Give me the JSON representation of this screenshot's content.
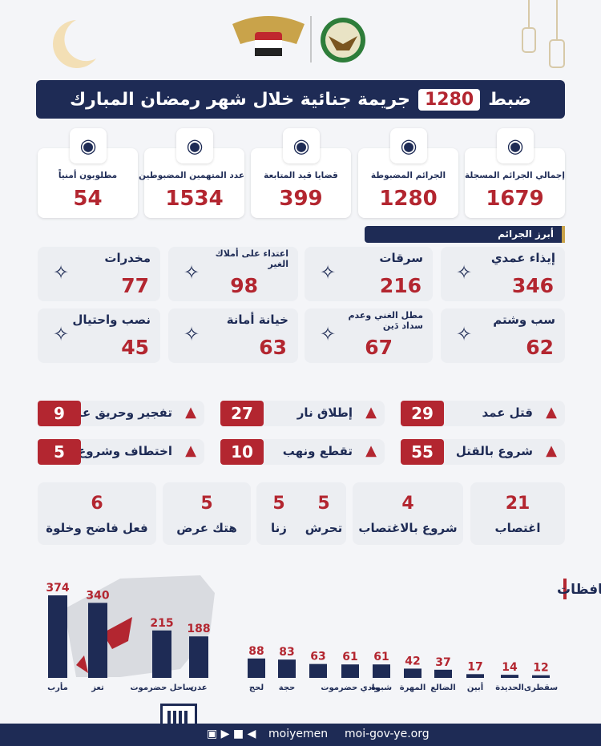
{
  "header": {
    "title_before": "ضبط",
    "title_number": "1280",
    "title_after": "جريمة جنائية خلال شهر رمضان المبارك"
  },
  "stats": [
    {
      "label": "إجمالي الجرائم المسجلة",
      "value": 1679
    },
    {
      "label": "الجرائم المضبوطة",
      "value": 1280
    },
    {
      "label": "قضايا قيد المتابعة",
      "value": 399
    },
    {
      "label": "عدد المتهمين المضبوطين",
      "value": 1534
    },
    {
      "label": "مطلوبون أمنياً",
      "value": 54
    }
  ],
  "section_title": "أبرز الجرائم",
  "crimes": [
    {
      "label": "إيذاء عمدي",
      "value": 346
    },
    {
      "label": "سرقات",
      "value": 216
    },
    {
      "label": "اعتداء على أملاك الغير",
      "value": 98
    },
    {
      "label": "مخدرات",
      "value": 77
    },
    {
      "label": "سب وشتم",
      "value": 62
    },
    {
      "label": "مطل الغني وعدم سداد دَين",
      "value": 67
    },
    {
      "label": "خيانة أمانة",
      "value": 63
    },
    {
      "label": "نصب واحتيال",
      "value": 45
    }
  ],
  "alerts": [
    {
      "label": "قتل عمد",
      "value": 29
    },
    {
      "label": "إطلاق نار",
      "value": 27
    },
    {
      "label": "تفجير وحريق عمدي",
      "value": 9
    },
    {
      "label": "شروع بالقتل",
      "value": 55
    },
    {
      "label": "تقطع ونهب",
      "value": 10
    },
    {
      "label": "اختطاف وشروع به",
      "value": 5
    }
  ],
  "sexual_crimes": [
    {
      "label": "اغتصاب",
      "value": 21
    },
    {
      "label": "شروع بالاغتصاب",
      "value": 4
    },
    {
      "label": "تحرش",
      "value": 5
    },
    {
      "label": "زنا",
      "value": 5
    },
    {
      "label": "هتك عرض",
      "value": 5
    },
    {
      "label": "فعل فاضح وخلوة",
      "value": 6
    }
  ],
  "chart_data": {
    "type": "bar",
    "title": "توزيع المتهمين حسب المحافظات",
    "categories": [
      "مأرب",
      "تعز",
      "ساحل حضرموت",
      "عدن",
      "لحج",
      "حجة",
      null,
      "وادي حضرموت",
      "شبوة",
      "المهرة",
      "الضالع",
      "أبين",
      "الحديدة",
      "سقطرى"
    ],
    "values": [
      374,
      340,
      215,
      188,
      88,
      83,
      63,
      61,
      61,
      42,
      37,
      17,
      14,
      12
    ],
    "color": "#1e2b55"
  },
  "footer": {
    "social": "moiyemen",
    "website": "moi-gov-ye.org"
  }
}
